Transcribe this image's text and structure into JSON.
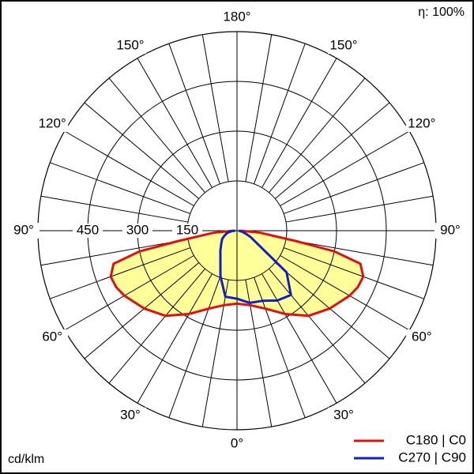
{
  "chart_data": {
    "type": "polar",
    "corner_note": "η: 100%",
    "unit_label": "cd/klm",
    "angles": [
      0,
      10,
      20,
      30,
      40,
      50,
      60,
      65,
      70,
      75,
      78,
      80,
      85,
      90
    ],
    "series": [
      {
        "name": "C180 | C0",
        "color": "#e01010",
        "fill": "#ffff99",
        "symmetric": true,
        "values": [
          220,
          228,
          250,
          290,
          335,
          365,
          392,
          402,
          405,
          385,
          300,
          180,
          70,
          10
        ]
      },
      {
        "name": "C270 | C90",
        "color": "#1020c0",
        "symmetric": false,
        "values": [
          205,
          221,
          225,
          243,
          253,
          195,
          60,
          45,
          30,
          20,
          15,
          12,
          8,
          5
        ],
        "values_left": [
          205,
          202,
          146,
          100,
          78,
          62,
          52,
          45,
          38,
          32,
          28,
          25,
          15,
          5
        ]
      }
    ],
    "rlim": [
      0,
      600
    ],
    "rticks": [
      150,
      300,
      450
    ],
    "angle_ticks": [
      {
        "value": 0,
        "label": "0°"
      },
      {
        "value": 30,
        "label": "30°"
      },
      {
        "value": 60,
        "label": "60°"
      },
      {
        "value": 90,
        "label": "90°"
      },
      {
        "value": 120,
        "label": "120°"
      },
      {
        "value": 150,
        "label": "150°"
      },
      {
        "value": 180,
        "label": "180°"
      }
    ],
    "spoke_step": 10,
    "legend": "bottom-right"
  }
}
